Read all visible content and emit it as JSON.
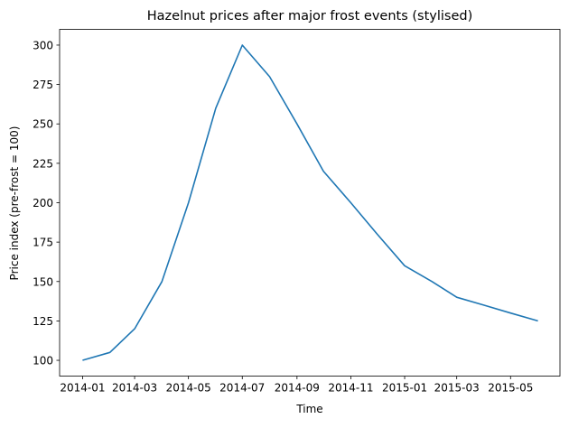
{
  "chart_data": {
    "type": "line",
    "title": "Hazelnut prices after major frost events (stylised)",
    "xlabel": "Time",
    "ylabel": "Price index (pre-frost = 100)",
    "x": [
      "2014-01-01",
      "2014-02-01",
      "2014-03-01",
      "2014-04-01",
      "2014-05-01",
      "2014-06-01",
      "2014-07-01",
      "2014-08-01",
      "2014-09-01",
      "2014-10-01",
      "2014-11-01",
      "2014-12-01",
      "2015-01-01",
      "2015-02-01",
      "2015-03-01",
      "2015-04-01",
      "2015-05-01",
      "2015-06-01"
    ],
    "series": [
      {
        "values": [
          100,
          105,
          120,
          150,
          200,
          260,
          300,
          280,
          250,
          220,
          200,
          180,
          160,
          150,
          140,
          135,
          130,
          125
        ],
        "color": "#1f77b4"
      }
    ],
    "xlim": [
      "2013-12-06",
      "2015-06-26"
    ],
    "ylim": [
      90,
      310
    ],
    "xticks": [
      "2014-01",
      "2014-03",
      "2014-05",
      "2014-07",
      "2014-09",
      "2014-11",
      "2015-01",
      "2015-03",
      "2015-05"
    ],
    "yticks": [
      100,
      125,
      150,
      175,
      200,
      225,
      250,
      275,
      300
    ],
    "grid": false,
    "legend": null
  }
}
